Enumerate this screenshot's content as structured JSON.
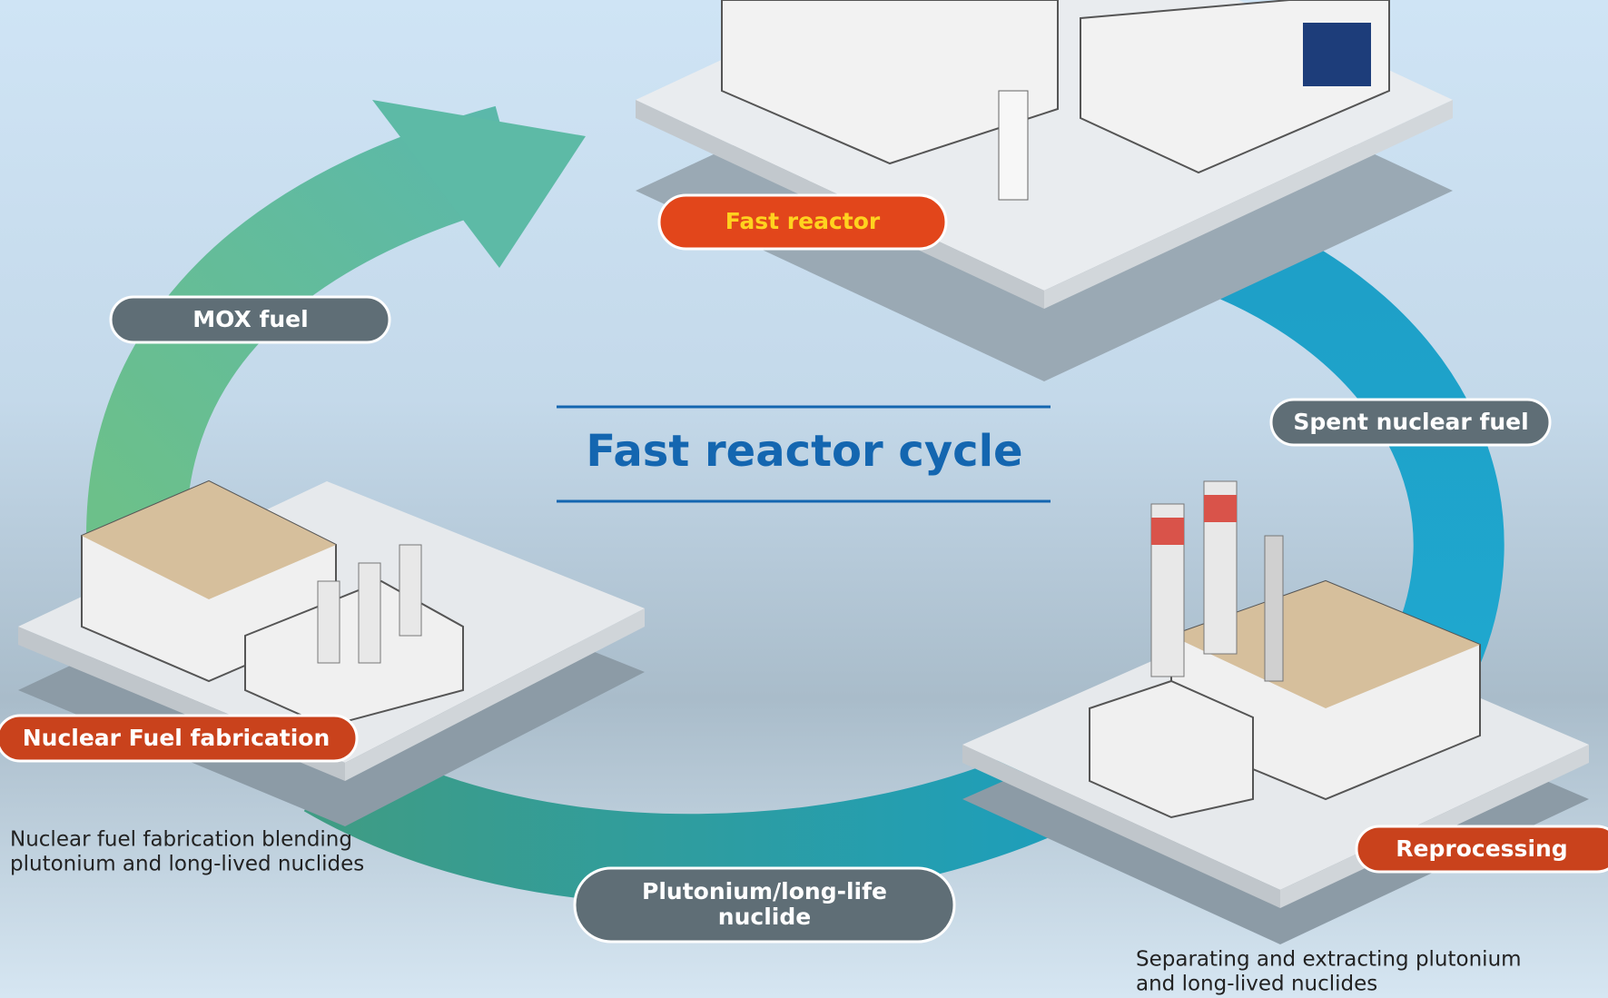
{
  "title": "Fast reactor cycle",
  "stages": [
    {
      "label": "Fast reactor"
    },
    {
      "label": "Nuclear Fuel fabrication",
      "description": [
        "Nuclear fuel fabrication blending",
        "plutonium and long-lived nuclides"
      ]
    },
    {
      "label": "Reprocessing",
      "description": [
        "Separating and extracting plutonium",
        "and long-lived nuclides"
      ]
    }
  ],
  "flows": [
    {
      "label": [
        "MOX fuel"
      ]
    },
    {
      "label": [
        "Spent nuclear fuel"
      ]
    },
    {
      "label": [
        "Plutonium/long-life",
        "nuclide"
      ]
    }
  ]
}
